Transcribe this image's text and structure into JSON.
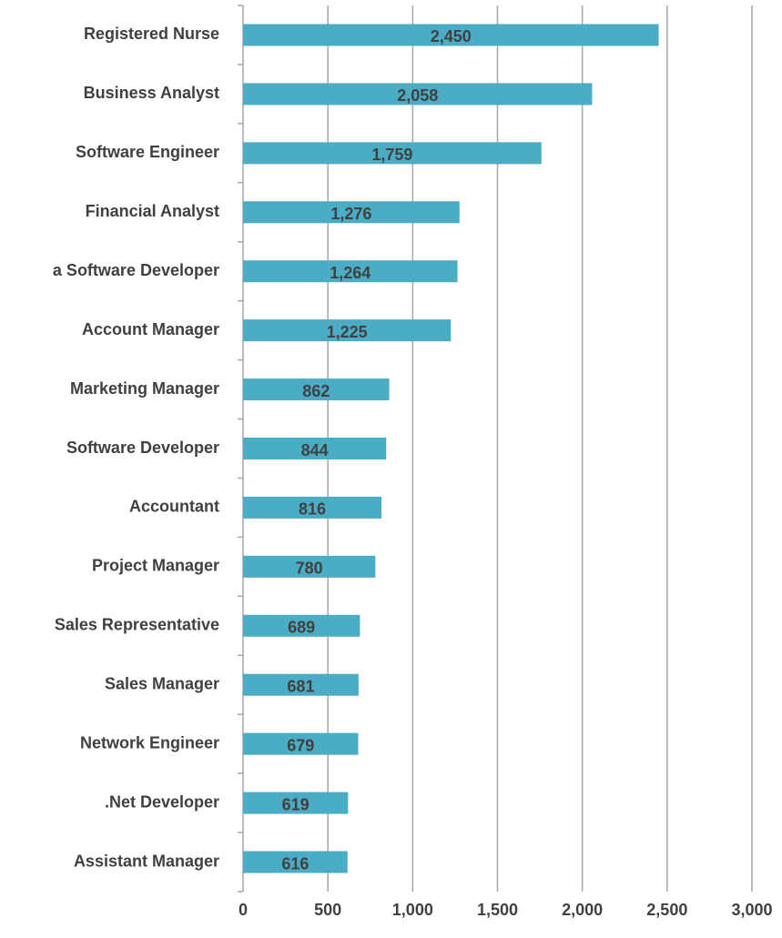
{
  "chart_data": {
    "type": "bar",
    "orientation": "horizontal",
    "categories": [
      "Registered Nurse",
      "Business Analyst",
      "Software Engineer",
      "Financial Analyst",
      "a Software Developer",
      "Account Manager",
      "Marketing Manager",
      "Software Developer",
      "Accountant",
      "Project Manager",
      "Sales Representative",
      "Sales Manager",
      "Network Engineer",
      ".Net Developer",
      "Assistant Manager"
    ],
    "values": [
      2450,
      2058,
      1759,
      1276,
      1264,
      1225,
      862,
      844,
      816,
      780,
      689,
      681,
      679,
      619,
      616
    ],
    "value_labels": [
      "2,450",
      "2,058",
      "1,759",
      "1,276",
      "1,264",
      "1,225",
      "862",
      "844",
      "816",
      "780",
      "689",
      "681",
      "679",
      "619",
      "616"
    ],
    "color": "#4bacc6",
    "xlim": [
      0,
      3000
    ],
    "xticks": [
      0,
      500,
      {
        "value": 1000,
        "label": "1,000"
      },
      {
        "value": 1500,
        "label": "1,500"
      },
      {
        "value": 2000,
        "label": "2,000"
      },
      {
        "value": 2500,
        "label": "2,500"
      },
      {
        "value": 3000,
        "label": "3,000"
      }
    ],
    "grid": true
  }
}
